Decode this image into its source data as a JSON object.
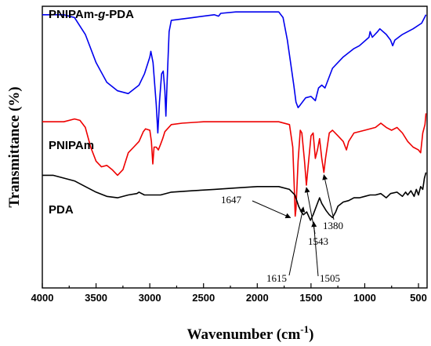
{
  "chart_data": {
    "type": "line",
    "xlabel_main": "Wavenumber (cm",
    "xlabel_sup": "-1",
    "xlabel_tail": ")",
    "ylabel": "Transmittance (%)",
    "xlim": [
      4000,
      420
    ],
    "x_reversed": true,
    "ylim": [
      0,
      1
    ],
    "y_ticks_shown": false,
    "grid": false,
    "x_ticks": [
      "4000",
      "3500",
      "3000",
      "2500",
      "2000",
      "1500",
      "1000",
      "500"
    ],
    "series": [
      {
        "name": "PNIPAm-g-PDA",
        "color": "#0000ee",
        "label_parts": [
          "PNIPAm-",
          "g",
          "-PDA"
        ],
        "points": [
          [
            4000,
            0.97
          ],
          [
            3800,
            0.97
          ],
          [
            3700,
            0.96
          ],
          [
            3600,
            0.9
          ],
          [
            3500,
            0.8
          ],
          [
            3400,
            0.73
          ],
          [
            3300,
            0.7
          ],
          [
            3200,
            0.69
          ],
          [
            3100,
            0.72
          ],
          [
            3050,
            0.76
          ],
          [
            3000,
            0.82
          ],
          [
            2990,
            0.84
          ],
          [
            2970,
            0.8
          ],
          [
            2940,
            0.65
          ],
          [
            2925,
            0.55
          ],
          [
            2910,
            0.66
          ],
          [
            2890,
            0.76
          ],
          [
            2875,
            0.77
          ],
          [
            2860,
            0.7
          ],
          [
            2850,
            0.61
          ],
          [
            2840,
            0.72
          ],
          [
            2820,
            0.91
          ],
          [
            2800,
            0.95
          ],
          [
            2600,
            0.96
          ],
          [
            2400,
            0.97
          ],
          [
            2360,
            0.965
          ],
          [
            2340,
            0.975
          ],
          [
            2200,
            0.98
          ],
          [
            2000,
            0.98
          ],
          [
            1800,
            0.98
          ],
          [
            1760,
            0.96
          ],
          [
            1720,
            0.88
          ],
          [
            1690,
            0.8
          ],
          [
            1660,
            0.72
          ],
          [
            1640,
            0.66
          ],
          [
            1620,
            0.64
          ],
          [
            1600,
            0.65
          ],
          [
            1550,
            0.675
          ],
          [
            1500,
            0.68
          ],
          [
            1460,
            0.665
          ],
          [
            1430,
            0.71
          ],
          [
            1400,
            0.72
          ],
          [
            1370,
            0.71
          ],
          [
            1300,
            0.78
          ],
          [
            1200,
            0.82
          ],
          [
            1100,
            0.85
          ],
          [
            1050,
            0.86
          ],
          [
            960,
            0.89
          ],
          [
            950,
            0.91
          ],
          [
            930,
            0.89
          ],
          [
            880,
            0.91
          ],
          [
            860,
            0.92
          ],
          [
            800,
            0.9
          ],
          [
            760,
            0.88
          ],
          [
            740,
            0.86
          ],
          [
            720,
            0.88
          ],
          [
            650,
            0.9
          ],
          [
            550,
            0.92
          ],
          [
            470,
            0.94
          ],
          [
            430,
            0.97
          ]
        ]
      },
      {
        "name": "PNIPAm",
        "color": "#ee0000",
        "label_parts": [
          "PNIPAm"
        ],
        "points": [
          [
            4000,
            0.59
          ],
          [
            3800,
            0.59
          ],
          [
            3700,
            0.6
          ],
          [
            3650,
            0.595
          ],
          [
            3600,
            0.57
          ],
          [
            3550,
            0.5
          ],
          [
            3500,
            0.45
          ],
          [
            3450,
            0.43
          ],
          [
            3400,
            0.435
          ],
          [
            3350,
            0.42
          ],
          [
            3300,
            0.4
          ],
          [
            3250,
            0.42
          ],
          [
            3200,
            0.48
          ],
          [
            3150,
            0.5
          ],
          [
            3100,
            0.52
          ],
          [
            3060,
            0.555
          ],
          [
            3040,
            0.565
          ],
          [
            3000,
            0.56
          ],
          [
            2985,
            0.52
          ],
          [
            2972,
            0.44
          ],
          [
            2960,
            0.5
          ],
          [
            2940,
            0.5
          ],
          [
            2920,
            0.49
          ],
          [
            2900,
            0.51
          ],
          [
            2880,
            0.53
          ],
          [
            2860,
            0.555
          ],
          [
            2800,
            0.58
          ],
          [
            2700,
            0.585
          ],
          [
            2500,
            0.59
          ],
          [
            2200,
            0.59
          ],
          [
            2000,
            0.59
          ],
          [
            1800,
            0.59
          ],
          [
            1700,
            0.58
          ],
          [
            1670,
            0.5
          ],
          [
            1655,
            0.35
          ],
          [
            1647,
            0.255
          ],
          [
            1640,
            0.28
          ],
          [
            1620,
            0.45
          ],
          [
            1600,
            0.56
          ],
          [
            1585,
            0.55
          ],
          [
            1560,
            0.45
          ],
          [
            1543,
            0.365
          ],
          [
            1530,
            0.42
          ],
          [
            1500,
            0.54
          ],
          [
            1480,
            0.55
          ],
          [
            1460,
            0.46
          ],
          [
            1440,
            0.49
          ],
          [
            1420,
            0.53
          ],
          [
            1400,
            0.46
          ],
          [
            1380,
            0.41
          ],
          [
            1365,
            0.46
          ],
          [
            1330,
            0.55
          ],
          [
            1300,
            0.56
          ],
          [
            1250,
            0.54
          ],
          [
            1200,
            0.52
          ],
          [
            1170,
            0.49
          ],
          [
            1150,
            0.52
          ],
          [
            1100,
            0.55
          ],
          [
            1000,
            0.56
          ],
          [
            900,
            0.57
          ],
          [
            850,
            0.585
          ],
          [
            800,
            0.57
          ],
          [
            750,
            0.56
          ],
          [
            700,
            0.57
          ],
          [
            650,
            0.55
          ],
          [
            600,
            0.52
          ],
          [
            550,
            0.5
          ],
          [
            500,
            0.49
          ],
          [
            480,
            0.48
          ],
          [
            460,
            0.55
          ],
          [
            440,
            0.58
          ],
          [
            430,
            0.62
          ]
        ]
      },
      {
        "name": "PDA",
        "color": "#000000",
        "label_parts": [
          "PDA"
        ],
        "points": [
          [
            4000,
            0.4
          ],
          [
            3900,
            0.4
          ],
          [
            3800,
            0.39
          ],
          [
            3700,
            0.38
          ],
          [
            3600,
            0.36
          ],
          [
            3500,
            0.34
          ],
          [
            3400,
            0.325
          ],
          [
            3300,
            0.32
          ],
          [
            3200,
            0.33
          ],
          [
            3120,
            0.335
          ],
          [
            3100,
            0.34
          ],
          [
            3050,
            0.33
          ],
          [
            3000,
            0.33
          ],
          [
            2900,
            0.33
          ],
          [
            2800,
            0.34
          ],
          [
            2600,
            0.345
          ],
          [
            2400,
            0.35
          ],
          [
            2200,
            0.355
          ],
          [
            2000,
            0.36
          ],
          [
            1800,
            0.36
          ],
          [
            1700,
            0.35
          ],
          [
            1650,
            0.33
          ],
          [
            1615,
            0.29
          ],
          [
            1590,
            0.27
          ],
          [
            1570,
            0.26
          ],
          [
            1540,
            0.27
          ],
          [
            1505,
            0.24
          ],
          [
            1480,
            0.26
          ],
          [
            1450,
            0.29
          ],
          [
            1420,
            0.32
          ],
          [
            1400,
            0.3
          ],
          [
            1360,
            0.275
          ],
          [
            1330,
            0.26
          ],
          [
            1300,
            0.25
          ],
          [
            1270,
            0.27
          ],
          [
            1250,
            0.29
          ],
          [
            1200,
            0.305
          ],
          [
            1150,
            0.31
          ],
          [
            1100,
            0.32
          ],
          [
            1050,
            0.32
          ],
          [
            1000,
            0.325
          ],
          [
            950,
            0.33
          ],
          [
            900,
            0.33
          ],
          [
            850,
            0.335
          ],
          [
            800,
            0.32
          ],
          [
            760,
            0.335
          ],
          [
            700,
            0.34
          ],
          [
            650,
            0.325
          ],
          [
            620,
            0.34
          ],
          [
            600,
            0.33
          ],
          [
            570,
            0.345
          ],
          [
            540,
            0.325
          ],
          [
            520,
            0.35
          ],
          [
            500,
            0.33
          ],
          [
            480,
            0.36
          ],
          [
            460,
            0.35
          ],
          [
            445,
            0.39
          ],
          [
            430,
            0.41
          ]
        ]
      }
    ],
    "annotations": [
      {
        "text": "1647",
        "x": 1647,
        "y": 0.255
      },
      {
        "text": "1543",
        "x": 1543,
        "y": 0.365
      },
      {
        "text": "1380",
        "x": 1380,
        "y": 0.41
      },
      {
        "text": "1615",
        "x": 1615,
        "y": 0.29
      },
      {
        "text": "1505",
        "x": 1505,
        "y": 0.24
      }
    ]
  }
}
